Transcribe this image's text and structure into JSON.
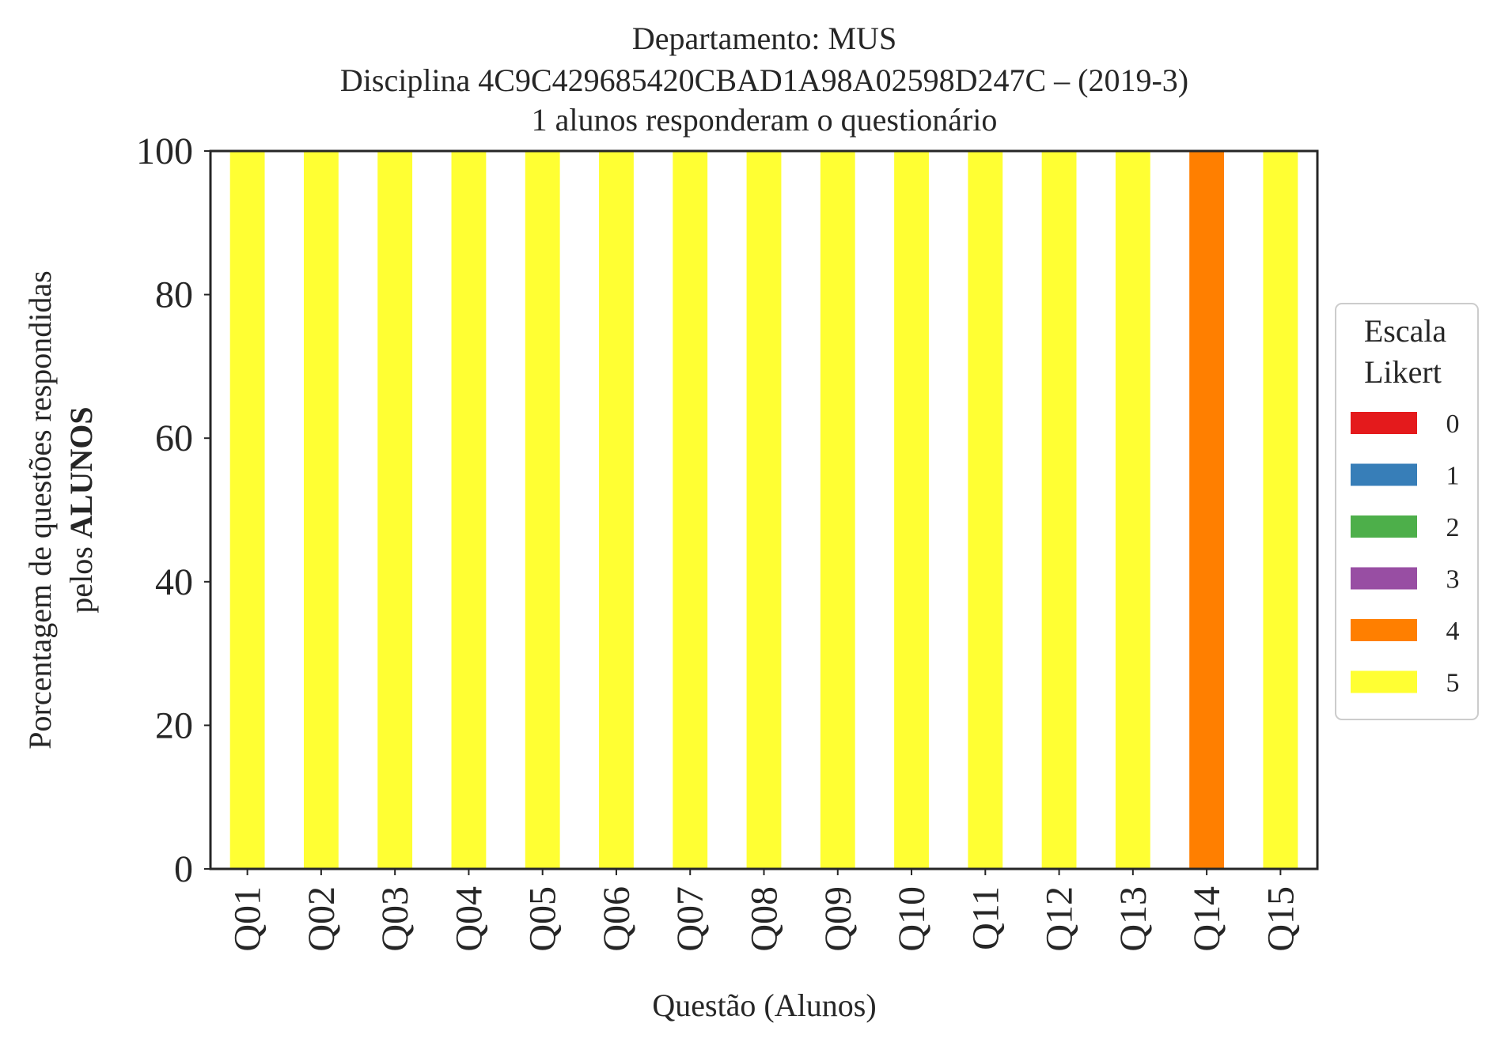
{
  "chart_data": {
    "type": "bar",
    "stacked": true,
    "title_lines": [
      "Departamento: MUS",
      "Disciplina 4C9C429685420CBAD1A98A02598D247C – (2019-3)",
      "1 alunos responderam o questionário"
    ],
    "xlabel": "Questão (Alunos)",
    "ylabel_line1": "Porcentagem de questões respondidas",
    "ylabel_line2_prefix": "pelos ",
    "ylabel_line2_bold": "ALUNOS",
    "ylim": [
      0,
      100
    ],
    "yticks": [
      "0",
      "20",
      "40",
      "60",
      "80",
      "100"
    ],
    "grid": false,
    "legend_position": "right",
    "legend_title_lines": [
      "Escala",
      "Likert"
    ],
    "categories": [
      "Q01",
      "Q02",
      "Q03",
      "Q04",
      "Q05",
      "Q06",
      "Q07",
      "Q08",
      "Q09",
      "Q10",
      "Q11",
      "Q12",
      "Q13",
      "Q14",
      "Q15"
    ],
    "series": [
      {
        "name": "0",
        "color": "#e41a1c",
        "values": [
          0,
          0,
          0,
          0,
          0,
          0,
          0,
          0,
          0,
          0,
          0,
          0,
          0,
          0,
          0
        ]
      },
      {
        "name": "1",
        "color": "#377eb8",
        "values": [
          0,
          0,
          0,
          0,
          0,
          0,
          0,
          0,
          0,
          0,
          0,
          0,
          0,
          0,
          0
        ]
      },
      {
        "name": "2",
        "color": "#4daf4a",
        "values": [
          0,
          0,
          0,
          0,
          0,
          0,
          0,
          0,
          0,
          0,
          0,
          0,
          0,
          0,
          0
        ]
      },
      {
        "name": "3",
        "color": "#984ea3",
        "values": [
          0,
          0,
          0,
          0,
          0,
          0,
          0,
          0,
          0,
          0,
          0,
          0,
          0,
          0,
          0
        ]
      },
      {
        "name": "4",
        "color": "#ff7f00",
        "values": [
          0,
          0,
          0,
          0,
          0,
          0,
          0,
          0,
          0,
          0,
          0,
          0,
          0,
          100,
          0
        ]
      },
      {
        "name": "5",
        "color": "#ffff33",
        "values": [
          100,
          100,
          100,
          100,
          100,
          100,
          100,
          100,
          100,
          100,
          100,
          100,
          100,
          0,
          100
        ]
      }
    ]
  }
}
